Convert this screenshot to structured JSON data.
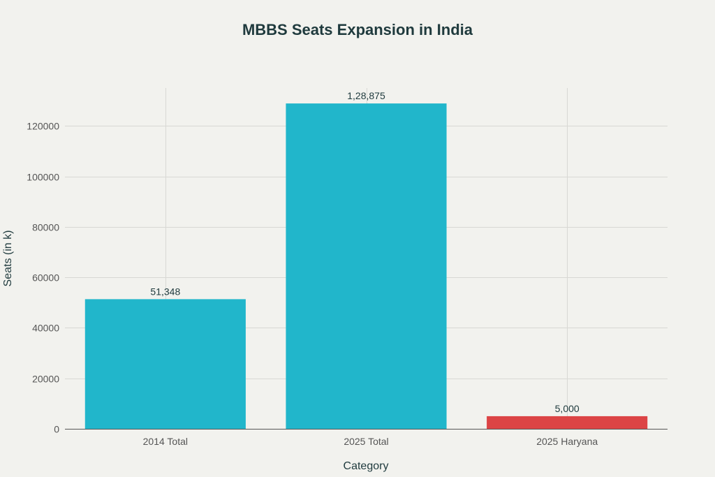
{
  "chart_data": {
    "type": "bar",
    "title": "MBBS Seats Expansion in India",
    "xlabel": "Category",
    "ylabel": "Seats (in k)",
    "categories": [
      "2014 Total",
      "2025 Total",
      "2025 Haryana"
    ],
    "values": [
      51348,
      128875,
      5000
    ],
    "data_labels": [
      "51,348",
      "1,28,875",
      "5,000"
    ],
    "colors": [
      "#21b6cb",
      "#21b6cb",
      "#dc4445"
    ],
    "ylim": [
      0,
      135000
    ],
    "yticks": [
      0,
      20000,
      40000,
      60000,
      80000,
      100000,
      120000
    ],
    "ytick_labels": [
      "0",
      "20000",
      "40000",
      "60000",
      "80000",
      "100000",
      "120000"
    ],
    "grid": true,
    "legend": "none"
  }
}
